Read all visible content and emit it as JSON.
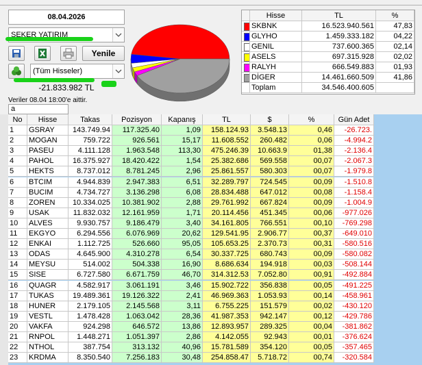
{
  "toolbar": {
    "date": "08.04.2026",
    "broker": "ŞEKER YATIRIM",
    "refresh": "Yenile",
    "filter": "(Tüm Hisseler)",
    "total": "-21.833.982 TL",
    "note": "Veriler 08.04 18:00'e aittir.",
    "search": "a"
  },
  "summary": {
    "columns": [
      "Hisse",
      "TL",
      "%"
    ],
    "rows": [
      {
        "name": "SKBNK",
        "tl": "16.523.940.561",
        "pct": "47,83",
        "color": "#ff0000"
      },
      {
        "name": "GLYHO",
        "tl": "1.459.333.182",
        "pct": "04,22",
        "color": "#0000ff"
      },
      {
        "name": "GENIL",
        "tl": "737.600.365",
        "pct": "02,14",
        "color": "#ffffff"
      },
      {
        "name": "ASELS",
        "tl": "697.315.928",
        "pct": "02,02",
        "color": "#ffff00"
      },
      {
        "name": "RALYH",
        "tl": "666.549.883",
        "pct": "01,93",
        "color": "#ff00ff"
      },
      {
        "name": "DİGER",
        "tl": "14.461.660.509",
        "pct": "41,86",
        "color": "#a0a0a0"
      }
    ],
    "total": {
      "name": "Toplam",
      "tl": "34.546.400.605"
    }
  },
  "table": {
    "columns": [
      "No",
      "Hisse",
      "Takas",
      "Pozisyon",
      "Kapanış",
      "TL",
      "$",
      "%",
      "Gün Adet"
    ],
    "rows": [
      [
        "1",
        "GSRAY",
        "143.749.94",
        "117.325.40",
        "1,09",
        "158.124.93",
        "3.548.13",
        "0,46",
        "-26.723."
      ],
      [
        "2",
        "MOGAN",
        "759.722",
        "926.561",
        "15,17",
        "11.608.552",
        "260.482",
        "0,06",
        "-4.994.2"
      ],
      [
        "3",
        "PASEU",
        "4.111.128",
        "1.963.548",
        "113,30",
        "475.246.39",
        "10.663.9",
        "01,38",
        "-2.136.4"
      ],
      [
        "4",
        "PAHOL",
        "16.375.927",
        "18.420.422",
        "1,54",
        "25.382.686",
        "569.558",
        "00,07",
        "-2.067.3"
      ],
      [
        "5",
        "HEKTS",
        "8.737.012",
        "8.781.245",
        "2,96",
        "25.861.557",
        "580.303",
        "00,07",
        "-1.979.8"
      ],
      [
        "6",
        "BTCIM",
        "4.944.839",
        "2.947.383",
        "6,51",
        "32.289.797",
        "724.545",
        "00,09",
        "-1.510.8"
      ],
      [
        "7",
        "BUCIM",
        "4.734.727",
        "3.136.298",
        "6,08",
        "28.834.488",
        "647.012",
        "00,08",
        "-1.158.4"
      ],
      [
        "8",
        "ZOREN",
        "10.334.025",
        "10.381.902",
        "2,88",
        "29.761.992",
        "667.824",
        "00,09",
        "-1.004.9"
      ],
      [
        "9",
        "USAK",
        "11.832.032",
        "12.161.959",
        "1,71",
        "20.114.456",
        "451.345",
        "00,06",
        "-977.026"
      ],
      [
        "10",
        "ALVES",
        "9.930.757",
        "9.186.479",
        "3,40",
        "34.161.805",
        "766.551",
        "00,10",
        "-769.298"
      ],
      [
        "11",
        "EKGYO",
        "6.294.556",
        "6.076.969",
        "20,62",
        "129.541.95",
        "2.906.77",
        "00,37",
        "-649.010"
      ],
      [
        "12",
        "ENKAI",
        "1.112.725",
        "526.660",
        "95,05",
        "105.653.25",
        "2.370.73",
        "00,31",
        "-580.516"
      ],
      [
        "13",
        "ODAS",
        "4.645.900",
        "4.310.278",
        "6,54",
        "30.337.725",
        "680.743",
        "00,09",
        "-580.082"
      ],
      [
        "14",
        "MEYSU",
        "514.002",
        "504.338",
        "16,90",
        "8.686.634",
        "194.918",
        "00,03",
        "-508.144"
      ],
      [
        "15",
        "SISE",
        "6.727.580",
        "6.671.759",
        "46,70",
        "314.312.53",
        "7.052.80",
        "00,91",
        "-492.884"
      ],
      [
        "16",
        "QUAGR",
        "4.582.917",
        "3.061.191",
        "3,46",
        "15.902.722",
        "356.838",
        "00,05",
        "-491.225"
      ],
      [
        "17",
        "TUKAS",
        "19.489.361",
        "19.126.322",
        "2,41",
        "46.969.363",
        "1.053.93",
        "00,14",
        "-458.961"
      ],
      [
        "18",
        "HUNER",
        "2.179.105",
        "2.145.568",
        "3,11",
        "6.755.225",
        "151.579",
        "00,02",
        "-430.120"
      ],
      [
        "19",
        "VESTL",
        "1.478.428",
        "1.063.042",
        "28,36",
        "41.987.353",
        "942.147",
        "00,12",
        "-429.786"
      ],
      [
        "20",
        "VAKFA",
        "924.298",
        "646.572",
        "13,86",
        "12.893.957",
        "289.325",
        "00,04",
        "-381.862"
      ],
      [
        "21",
        "RNPOL",
        "1.448.271",
        "1.051.397",
        "2,86",
        "4.142.055",
        "92.943",
        "00,01",
        "-376.624"
      ],
      [
        "22",
        "NTHOL",
        "387.754",
        "313.132",
        "40,96",
        "15.781.589",
        "354.120",
        "00,05",
        "-357.465"
      ],
      [
        "23",
        "KRDMA",
        "8.350.540",
        "7.256.183",
        "30,48",
        "254.858.47",
        "5.718.72",
        "00,74",
        "-320.584"
      ]
    ]
  }
}
